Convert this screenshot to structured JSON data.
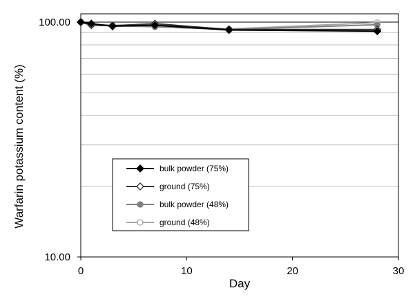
{
  "chart_data": {
    "type": "line",
    "title": "",
    "xlabel": "Day",
    "ylabel": "Warfarin potassium content (%)",
    "xlim": [
      0,
      30
    ],
    "ylim": [
      10,
      100
    ],
    "y_scale": "log",
    "x_ticks": [
      0,
      10,
      20,
      30
    ],
    "y_ticks": [
      10,
      100
    ],
    "x_tick_labels": [
      "0",
      "10",
      "20",
      "30"
    ],
    "y_tick_labels": [
      "10.00",
      "100.00"
    ],
    "gridlines": "horizontal",
    "legend_position": "lower-left",
    "series": [
      {
        "name": "bulk powder (75%)",
        "color": "#000000",
        "marker": "diamond",
        "x": [
          0,
          1,
          3,
          7,
          14,
          28
        ],
        "y": [
          100.0,
          98.5,
          96.0,
          97.0,
          92.5,
          91.5
        ]
      },
      {
        "name": "ground (75%)",
        "color": "#333333",
        "marker": "open-diamond",
        "x": [
          0,
          1,
          3,
          7,
          14,
          28
        ],
        "y": [
          100.0,
          97.0,
          96.5,
          98.5,
          93.0,
          93.0
        ]
      },
      {
        "name": "bulk powder (48%)",
        "color": "#808080",
        "marker": "circle",
        "x": [
          0,
          1,
          3,
          7,
          14,
          28
        ],
        "y": [
          100.0,
          98.0,
          96.5,
          95.5,
          93.0,
          97.5
        ]
      },
      {
        "name": "ground (48%)",
        "color": "#a6a6a6",
        "marker": "open-circle",
        "x": [
          0,
          1,
          3,
          7,
          14,
          28
        ],
        "y": [
          100.0,
          98.0,
          97.0,
          96.5,
          93.5,
          99.5
        ]
      }
    ]
  }
}
